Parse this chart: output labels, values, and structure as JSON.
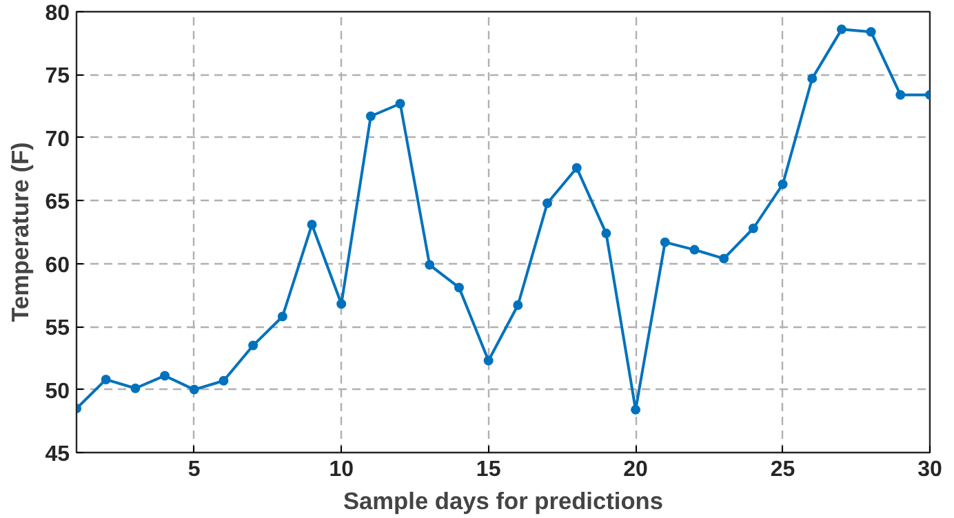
{
  "chart_data": {
    "type": "line",
    "xlabel": "Sample days for predictions",
    "ylabel": "Temperature (F)",
    "x": [
      1,
      2,
      3,
      4,
      5,
      6,
      7,
      8,
      9,
      10,
      11,
      12,
      13,
      14,
      15,
      16,
      17,
      18,
      19,
      20,
      21,
      22,
      23,
      24,
      25,
      26,
      27,
      28,
      29,
      30
    ],
    "series": [
      {
        "color": "#0072bd",
        "values": [
          48.5,
          50.8,
          50.1,
          51.1,
          50.0,
          50.7,
          53.5,
          55.8,
          63.1,
          56.8,
          71.7,
          72.7,
          59.9,
          58.1,
          52.3,
          56.7,
          64.8,
          67.6,
          62.4,
          48.4,
          61.7,
          61.1,
          60.4,
          62.8,
          66.3,
          74.7,
          78.6,
          78.4,
          73.4,
          73.4
        ]
      }
    ],
    "xlim": [
      1,
      30
    ],
    "xticks": [
      5,
      10,
      15,
      20,
      25,
      30
    ],
    "ylim": [
      45,
      80
    ],
    "yticks": [
      45,
      50,
      55,
      60,
      65,
      70,
      75,
      80
    ],
    "grid": true,
    "marker": "circle",
    "line_style": "solid"
  }
}
